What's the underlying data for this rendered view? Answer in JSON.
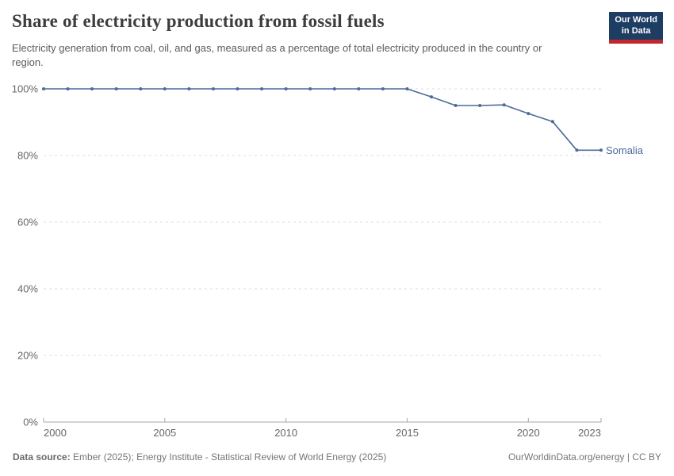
{
  "header": {
    "title": "Share of electricity production from fossil fuels",
    "subtitle": "Electricity generation from coal, oil, and gas, measured as a percentage of total electricity produced in the country or region.",
    "logo": {
      "line1": "Our World",
      "line2": "in Data"
    }
  },
  "chart_data": {
    "type": "line",
    "title": "Share of electricity production from fossil fuels",
    "xlabel": "",
    "ylabel": "",
    "xlim": [
      2000,
      2023
    ],
    "ylim": [
      0,
      100
    ],
    "x_ticks": [
      2000,
      2005,
      2010,
      2015,
      2020,
      2023
    ],
    "y_ticks": [
      0,
      20,
      40,
      60,
      80,
      100
    ],
    "y_tick_suffix": "%",
    "grid": "horizontal-dashed",
    "legend_position": "end-of-line",
    "series": [
      {
        "name": "Somalia",
        "x": [
          2000,
          2001,
          2002,
          2003,
          2004,
          2005,
          2006,
          2007,
          2008,
          2009,
          2010,
          2011,
          2012,
          2013,
          2014,
          2015,
          2016,
          2017,
          2018,
          2019,
          2020,
          2021,
          2022,
          2023
        ],
        "values": [
          100,
          100,
          100,
          100,
          100,
          100,
          100,
          100,
          100,
          100,
          100,
          100,
          100,
          100,
          100,
          100,
          97.6,
          95,
          95,
          95.2,
          92.6,
          90.2,
          81.6,
          81.6
        ]
      }
    ]
  },
  "footer": {
    "source_label": "Data source:",
    "source_text": " Ember (2025); Energy Institute - Statistical Review of World Energy (2025)",
    "credit": "OurWorldinData.org/energy | CC BY"
  },
  "colors": {
    "line": "#4c6a9c",
    "grid": "#dcdcdc",
    "axis": "#a6a6a6",
    "tick_label": "#666666",
    "title": "#3d3d3d",
    "subtitle": "#5b5b5b",
    "footer": "#757575",
    "logo_bg": "#1d3d63",
    "logo_red": "#c1272d"
  }
}
